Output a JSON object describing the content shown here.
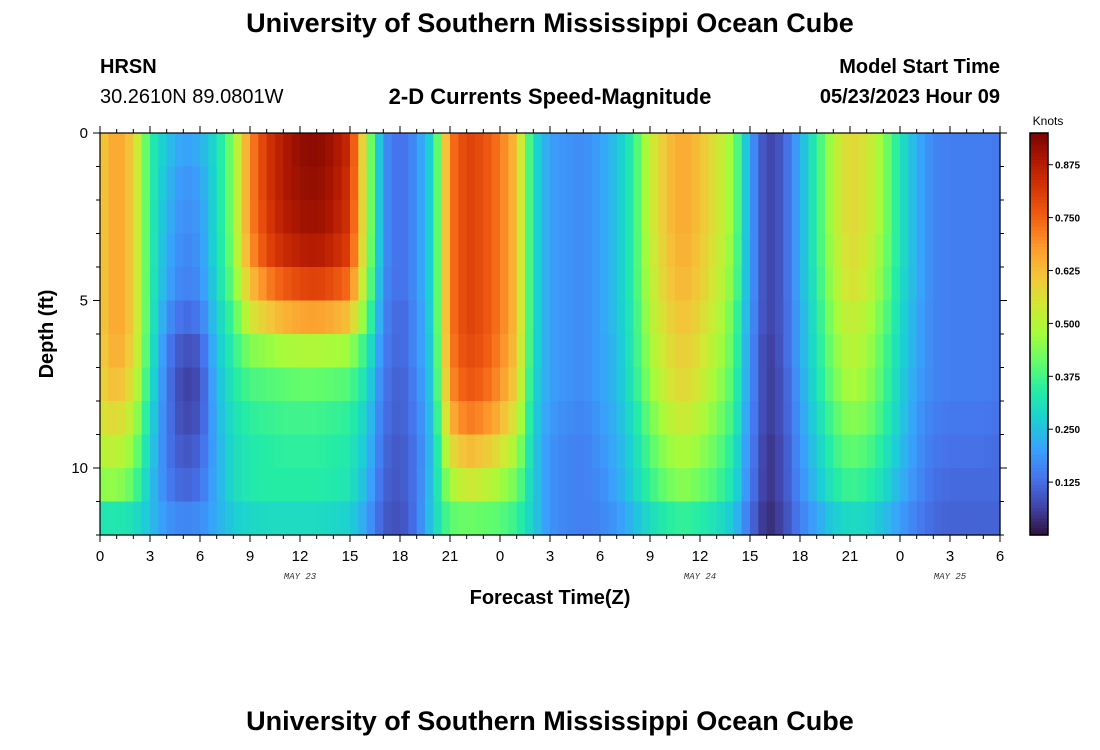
{
  "header": {
    "title": "University of Southern Mississippi Ocean Cube",
    "station": "HRSN",
    "coordinates": "30.2610N  89.0801W",
    "subtitle": "2-D Currents Speed-Magnitude",
    "start_label": "Model Start Time",
    "start_value": "05/23/2023 Hour 09"
  },
  "footer": {
    "title": "University of Southern Mississippi Ocean Cube"
  },
  "colors": {
    "colormap": [
      "#30123b",
      "#4145ab",
      "#4675ed",
      "#39a2fc",
      "#1bcfd4",
      "#24eca6",
      "#61fc6c",
      "#a4fc3b",
      "#d1e834",
      "#f3c63a",
      "#fe9b2d",
      "#f36315",
      "#d93806",
      "#b11901",
      "#7a0402"
    ]
  },
  "chart_data": {
    "type": "heatmap",
    "title": "2-D Currents Speed-Magnitude",
    "xlabel": "Forecast Time(Z)",
    "ylabel": "Depth (ft)",
    "x_range_hours": [
      0,
      54
    ],
    "y_range_ft": [
      0,
      12
    ],
    "y_inverted": true,
    "x_tick_labels": [
      "0",
      "3",
      "6",
      "9",
      "12",
      "15",
      "18",
      "21",
      "0",
      "3",
      "6",
      "9",
      "12",
      "15",
      "18",
      "21",
      "0",
      "3",
      "6"
    ],
    "y_ticks": [
      {
        "value": 0,
        "label": "0"
      },
      {
        "value": 5,
        "label": "5"
      },
      {
        "value": 10,
        "label": "10"
      }
    ],
    "date_labels": [
      {
        "hour": 12,
        "label": "MAY 23"
      },
      {
        "hour": 36,
        "label": "MAY 24"
      },
      {
        "hour": 51,
        "label": "MAY 25"
      }
    ],
    "colorbar": {
      "title": "Knots",
      "range": [
        0.0,
        0.95
      ],
      "ticks": [
        {
          "value": 0.125,
          "label": "0.125"
        },
        {
          "value": 0.25,
          "label": "0.250"
        },
        {
          "value": 0.375,
          "label": "0.375"
        },
        {
          "value": 0.5,
          "label": "0.500"
        },
        {
          "value": 0.625,
          "label": "0.625"
        },
        {
          "value": 0.75,
          "label": "0.750"
        },
        {
          "value": 0.875,
          "label": "0.875"
        }
      ]
    },
    "time_step_hours": 0.5,
    "depth_levels_ft": [
      0.5,
      1.5,
      2.5,
      3.5,
      4.5,
      5.5,
      6.5,
      7.5,
      8.5,
      9.5,
      10.5,
      11.5
    ],
    "surface_speed_knots_hourly": [
      0.6,
      0.67,
      0.6,
      0.35,
      0.25,
      0.2,
      0.22,
      0.3,
      0.45,
      0.7,
      0.82,
      0.88,
      0.92,
      0.93,
      0.9,
      0.84,
      0.5,
      0.18,
      0.12,
      0.18,
      0.3,
      0.72,
      0.8,
      0.78,
      0.72,
      0.62,
      0.3,
      0.2,
      0.18,
      0.17,
      0.2,
      0.25,
      0.35,
      0.52,
      0.62,
      0.66,
      0.62,
      0.55,
      0.45,
      0.2,
      0.06,
      0.1,
      0.22,
      0.35,
      0.5,
      0.58,
      0.55,
      0.45,
      0.32,
      0.22,
      0.16,
      0.15,
      0.15,
      0.15,
      0.14
    ],
    "speed_knots_by_depth_hourly": [
      [
        0.6,
        0.67,
        0.6,
        0.35,
        0.25,
        0.2,
        0.22,
        0.3,
        0.45,
        0.7,
        0.82,
        0.88,
        0.92,
        0.93,
        0.9,
        0.84,
        0.5,
        0.18,
        0.12,
        0.18,
        0.3,
        0.72,
        0.8,
        0.78,
        0.72,
        0.62,
        0.3,
        0.2,
        0.18,
        0.17,
        0.2,
        0.25,
        0.35,
        0.52,
        0.62,
        0.66,
        0.62,
        0.55,
        0.45,
        0.2,
        0.06,
        0.1,
        0.22,
        0.35,
        0.5,
        0.58,
        0.55,
        0.45,
        0.32,
        0.22,
        0.16,
        0.15,
        0.15,
        0.15,
        0.14
      ],
      [
        0.6,
        0.67,
        0.6,
        0.35,
        0.24,
        0.18,
        0.2,
        0.3,
        0.45,
        0.7,
        0.82,
        0.88,
        0.91,
        0.92,
        0.89,
        0.83,
        0.5,
        0.18,
        0.12,
        0.18,
        0.3,
        0.72,
        0.8,
        0.78,
        0.72,
        0.62,
        0.3,
        0.2,
        0.18,
        0.17,
        0.2,
        0.25,
        0.35,
        0.52,
        0.62,
        0.66,
        0.62,
        0.55,
        0.45,
        0.2,
        0.06,
        0.1,
        0.22,
        0.35,
        0.5,
        0.58,
        0.55,
        0.45,
        0.32,
        0.22,
        0.16,
        0.15,
        0.15,
        0.15,
        0.14
      ],
      [
        0.6,
        0.67,
        0.6,
        0.35,
        0.23,
        0.17,
        0.19,
        0.3,
        0.45,
        0.7,
        0.81,
        0.87,
        0.9,
        0.91,
        0.88,
        0.82,
        0.5,
        0.18,
        0.12,
        0.18,
        0.3,
        0.72,
        0.8,
        0.78,
        0.72,
        0.62,
        0.3,
        0.2,
        0.18,
        0.17,
        0.2,
        0.25,
        0.35,
        0.52,
        0.62,
        0.66,
        0.62,
        0.55,
        0.45,
        0.2,
        0.06,
        0.1,
        0.22,
        0.35,
        0.5,
        0.58,
        0.55,
        0.45,
        0.32,
        0.22,
        0.16,
        0.15,
        0.15,
        0.15,
        0.14
      ],
      [
        0.6,
        0.67,
        0.6,
        0.35,
        0.22,
        0.16,
        0.18,
        0.3,
        0.44,
        0.68,
        0.79,
        0.84,
        0.87,
        0.88,
        0.85,
        0.8,
        0.49,
        0.18,
        0.12,
        0.18,
        0.3,
        0.72,
        0.8,
        0.78,
        0.72,
        0.62,
        0.3,
        0.2,
        0.18,
        0.17,
        0.2,
        0.25,
        0.35,
        0.51,
        0.61,
        0.65,
        0.61,
        0.54,
        0.44,
        0.2,
        0.06,
        0.1,
        0.22,
        0.35,
        0.49,
        0.57,
        0.54,
        0.44,
        0.32,
        0.22,
        0.16,
        0.15,
        0.15,
        0.15,
        0.14
      ],
      [
        0.6,
        0.67,
        0.6,
        0.35,
        0.21,
        0.15,
        0.17,
        0.29,
        0.42,
        0.62,
        0.71,
        0.76,
        0.79,
        0.8,
        0.78,
        0.73,
        0.46,
        0.17,
        0.12,
        0.18,
        0.3,
        0.72,
        0.8,
        0.78,
        0.72,
        0.62,
        0.3,
        0.2,
        0.18,
        0.17,
        0.2,
        0.25,
        0.35,
        0.5,
        0.6,
        0.64,
        0.6,
        0.53,
        0.43,
        0.2,
        0.06,
        0.1,
        0.22,
        0.34,
        0.48,
        0.56,
        0.53,
        0.43,
        0.31,
        0.22,
        0.16,
        0.15,
        0.15,
        0.15,
        0.14
      ],
      [
        0.6,
        0.67,
        0.6,
        0.35,
        0.18,
        0.12,
        0.14,
        0.27,
        0.38,
        0.54,
        0.6,
        0.64,
        0.66,
        0.67,
        0.65,
        0.62,
        0.41,
        0.16,
        0.11,
        0.17,
        0.3,
        0.72,
        0.8,
        0.78,
        0.72,
        0.62,
        0.3,
        0.2,
        0.18,
        0.17,
        0.2,
        0.25,
        0.34,
        0.49,
        0.58,
        0.62,
        0.58,
        0.51,
        0.41,
        0.19,
        0.06,
        0.1,
        0.21,
        0.33,
        0.46,
        0.53,
        0.5,
        0.41,
        0.3,
        0.21,
        0.16,
        0.15,
        0.15,
        0.15,
        0.14
      ],
      [
        0.59,
        0.66,
        0.58,
        0.34,
        0.15,
        0.08,
        0.1,
        0.25,
        0.35,
        0.44,
        0.46,
        0.48,
        0.49,
        0.49,
        0.48,
        0.47,
        0.34,
        0.15,
        0.11,
        0.17,
        0.29,
        0.71,
        0.79,
        0.77,
        0.71,
        0.61,
        0.3,
        0.2,
        0.18,
        0.17,
        0.2,
        0.24,
        0.34,
        0.47,
        0.56,
        0.6,
        0.56,
        0.49,
        0.4,
        0.18,
        0.05,
        0.1,
        0.21,
        0.32,
        0.44,
        0.51,
        0.48,
        0.39,
        0.29,
        0.21,
        0.16,
        0.15,
        0.15,
        0.15,
        0.14
      ],
      [
        0.58,
        0.63,
        0.55,
        0.32,
        0.14,
        0.06,
        0.08,
        0.24,
        0.33,
        0.38,
        0.39,
        0.4,
        0.41,
        0.41,
        0.4,
        0.39,
        0.3,
        0.14,
        0.1,
        0.16,
        0.28,
        0.69,
        0.77,
        0.75,
        0.69,
        0.59,
        0.29,
        0.2,
        0.18,
        0.17,
        0.2,
        0.24,
        0.33,
        0.45,
        0.54,
        0.58,
        0.54,
        0.47,
        0.38,
        0.18,
        0.05,
        0.09,
        0.2,
        0.31,
        0.42,
        0.49,
        0.46,
        0.38,
        0.28,
        0.2,
        0.16,
        0.15,
        0.15,
        0.15,
        0.14
      ],
      [
        0.55,
        0.58,
        0.5,
        0.3,
        0.14,
        0.07,
        0.09,
        0.23,
        0.31,
        0.35,
        0.36,
        0.37,
        0.37,
        0.37,
        0.36,
        0.35,
        0.27,
        0.13,
        0.1,
        0.15,
        0.27,
        0.64,
        0.72,
        0.7,
        0.64,
        0.54,
        0.28,
        0.19,
        0.17,
        0.16,
        0.19,
        0.23,
        0.31,
        0.42,
        0.5,
        0.54,
        0.5,
        0.44,
        0.36,
        0.17,
        0.05,
        0.09,
        0.19,
        0.29,
        0.39,
        0.45,
        0.43,
        0.36,
        0.27,
        0.19,
        0.15,
        0.14,
        0.14,
        0.14,
        0.13
      ],
      [
        0.5,
        0.52,
        0.45,
        0.28,
        0.14,
        0.09,
        0.11,
        0.22,
        0.3,
        0.33,
        0.34,
        0.35,
        0.35,
        0.35,
        0.34,
        0.33,
        0.25,
        0.12,
        0.09,
        0.14,
        0.26,
        0.56,
        0.63,
        0.61,
        0.56,
        0.48,
        0.27,
        0.18,
        0.16,
        0.15,
        0.18,
        0.22,
        0.29,
        0.39,
        0.46,
        0.49,
        0.46,
        0.41,
        0.33,
        0.16,
        0.04,
        0.08,
        0.18,
        0.27,
        0.36,
        0.41,
        0.39,
        0.33,
        0.25,
        0.18,
        0.14,
        0.13,
        0.13,
        0.13,
        0.12
      ],
      [
        0.45,
        0.46,
        0.4,
        0.26,
        0.15,
        0.11,
        0.13,
        0.22,
        0.3,
        0.33,
        0.34,
        0.34,
        0.34,
        0.34,
        0.33,
        0.32,
        0.23,
        0.11,
        0.09,
        0.14,
        0.27,
        0.48,
        0.54,
        0.52,
        0.48,
        0.42,
        0.27,
        0.18,
        0.16,
        0.15,
        0.17,
        0.21,
        0.28,
        0.36,
        0.42,
        0.45,
        0.42,
        0.38,
        0.31,
        0.15,
        0.04,
        0.08,
        0.17,
        0.25,
        0.33,
        0.37,
        0.35,
        0.3,
        0.23,
        0.17,
        0.13,
        0.12,
        0.12,
        0.12,
        0.12
      ],
      [
        0.32,
        0.33,
        0.31,
        0.25,
        0.18,
        0.16,
        0.17,
        0.22,
        0.27,
        0.29,
        0.3,
        0.3,
        0.3,
        0.3,
        0.29,
        0.28,
        0.2,
        0.1,
        0.08,
        0.14,
        0.28,
        0.4,
        0.42,
        0.41,
        0.4,
        0.36,
        0.27,
        0.18,
        0.16,
        0.15,
        0.16,
        0.19,
        0.24,
        0.3,
        0.34,
        0.36,
        0.34,
        0.31,
        0.26,
        0.13,
        0.03,
        0.07,
        0.15,
        0.21,
        0.27,
        0.3,
        0.29,
        0.25,
        0.2,
        0.15,
        0.12,
        0.11,
        0.11,
        0.11,
        0.11
      ]
    ]
  }
}
